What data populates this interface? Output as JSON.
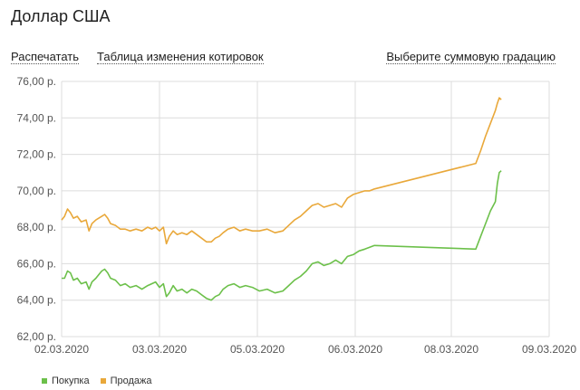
{
  "header": {
    "title": "Доллар США"
  },
  "toolbar": {
    "print_label": "Распечатать",
    "table_label": "Таблица изменения котировок",
    "gradation_label": "Выберите суммовую градацию"
  },
  "colors": {
    "buy": "#6cc04a",
    "sell": "#e9a83a",
    "grid": "#dcdcdc",
    "axis_text": "#555555"
  },
  "chart_data": {
    "type": "line",
    "title": "",
    "xlabel": "",
    "ylabel": "",
    "ylim": [
      62,
      76
    ],
    "y_ticks": [
      62,
      64,
      66,
      68,
      70,
      72,
      74,
      76
    ],
    "y_tick_labels": [
      "62,00 р.",
      "64,00 р.",
      "66,00 р.",
      "68,00 р.",
      "70,00 р.",
      "72,00 р.",
      "74,00 р.",
      "76,00 р."
    ],
    "x_categories": [
      "02.03.2020",
      "03.03.2020",
      "05.03.2020",
      "06.03.2020",
      "08.03.2020",
      "09.03.2020"
    ],
    "grid": true,
    "legend_position": "bottom-left",
    "series": [
      {
        "name": "Покупка",
        "color": "#6cc04a",
        "points": [
          [
            0.0,
            65.2
          ],
          [
            0.03,
            65.2
          ],
          [
            0.06,
            65.6
          ],
          [
            0.09,
            65.5
          ],
          [
            0.12,
            65.1
          ],
          [
            0.16,
            65.2
          ],
          [
            0.2,
            64.9
          ],
          [
            0.25,
            65.0
          ],
          [
            0.28,
            64.6
          ],
          [
            0.31,
            65.0
          ],
          [
            0.35,
            65.2
          ],
          [
            0.38,
            65.4
          ],
          [
            0.41,
            65.6
          ],
          [
            0.44,
            65.7
          ],
          [
            0.47,
            65.5
          ],
          [
            0.5,
            65.2
          ],
          [
            0.55,
            65.1
          ],
          [
            0.6,
            64.8
          ],
          [
            0.65,
            64.9
          ],
          [
            0.7,
            64.7
          ],
          [
            0.76,
            64.8
          ],
          [
            0.82,
            64.6
          ],
          [
            0.88,
            64.8
          ],
          [
            0.92,
            64.9
          ],
          [
            0.96,
            65.0
          ],
          [
            1.0,
            64.7
          ],
          [
            1.04,
            64.9
          ],
          [
            1.07,
            64.2
          ],
          [
            1.1,
            64.4
          ],
          [
            1.14,
            64.8
          ],
          [
            1.18,
            64.5
          ],
          [
            1.23,
            64.6
          ],
          [
            1.28,
            64.4
          ],
          [
            1.33,
            64.6
          ],
          [
            1.38,
            64.5
          ],
          [
            1.43,
            64.3
          ],
          [
            1.48,
            64.1
          ],
          [
            1.53,
            64.0
          ],
          [
            1.57,
            64.2
          ],
          [
            1.61,
            64.3
          ],
          [
            1.65,
            64.6
          ],
          [
            1.7,
            64.8
          ],
          [
            1.76,
            64.9
          ],
          [
            1.82,
            64.7
          ],
          [
            1.88,
            64.8
          ],
          [
            1.95,
            64.7
          ],
          [
            2.02,
            64.5
          ],
          [
            2.1,
            64.6
          ],
          [
            2.18,
            64.4
          ],
          [
            2.26,
            64.5
          ],
          [
            2.32,
            64.8
          ],
          [
            2.38,
            65.1
          ],
          [
            2.44,
            65.3
          ],
          [
            2.5,
            65.6
          ],
          [
            2.56,
            66.0
          ],
          [
            2.62,
            66.1
          ],
          [
            2.68,
            65.9
          ],
          [
            2.74,
            66.0
          ],
          [
            2.8,
            66.2
          ],
          [
            2.86,
            66.0
          ],
          [
            2.92,
            66.4
          ],
          [
            2.98,
            66.5
          ],
          [
            3.04,
            66.7
          ],
          [
            3.1,
            66.8
          ],
          [
            3.15,
            66.9
          ],
          [
            3.2,
            67.0
          ],
          [
            4.25,
            66.8
          ],
          [
            4.3,
            67.5
          ],
          [
            4.35,
            68.2
          ],
          [
            4.4,
            68.9
          ],
          [
            4.45,
            69.4
          ],
          [
            4.47,
            70.4
          ],
          [
            4.49,
            71.0
          ],
          [
            4.51,
            71.1
          ]
        ]
      },
      {
        "name": "Продажа",
        "color": "#e9a83a",
        "points": [
          [
            0.0,
            68.4
          ],
          [
            0.03,
            68.6
          ],
          [
            0.06,
            69.0
          ],
          [
            0.09,
            68.8
          ],
          [
            0.12,
            68.5
          ],
          [
            0.16,
            68.6
          ],
          [
            0.2,
            68.3
          ],
          [
            0.25,
            68.4
          ],
          [
            0.28,
            67.8
          ],
          [
            0.31,
            68.2
          ],
          [
            0.35,
            68.4
          ],
          [
            0.38,
            68.5
          ],
          [
            0.41,
            68.6
          ],
          [
            0.44,
            68.7
          ],
          [
            0.47,
            68.5
          ],
          [
            0.5,
            68.2
          ],
          [
            0.55,
            68.1
          ],
          [
            0.6,
            67.9
          ],
          [
            0.65,
            67.9
          ],
          [
            0.7,
            67.8
          ],
          [
            0.76,
            67.9
          ],
          [
            0.82,
            67.8
          ],
          [
            0.88,
            68.0
          ],
          [
            0.92,
            67.9
          ],
          [
            0.96,
            68.0
          ],
          [
            1.0,
            67.8
          ],
          [
            1.04,
            68.0
          ],
          [
            1.07,
            67.1
          ],
          [
            1.1,
            67.5
          ],
          [
            1.14,
            67.8
          ],
          [
            1.18,
            67.6
          ],
          [
            1.23,
            67.7
          ],
          [
            1.28,
            67.6
          ],
          [
            1.33,
            67.8
          ],
          [
            1.38,
            67.6
          ],
          [
            1.43,
            67.4
          ],
          [
            1.48,
            67.2
          ],
          [
            1.53,
            67.2
          ],
          [
            1.57,
            67.4
          ],
          [
            1.61,
            67.5
          ],
          [
            1.65,
            67.7
          ],
          [
            1.7,
            67.9
          ],
          [
            1.76,
            68.0
          ],
          [
            1.82,
            67.8
          ],
          [
            1.88,
            67.9
          ],
          [
            1.95,
            67.8
          ],
          [
            2.02,
            67.8
          ],
          [
            2.1,
            67.9
          ],
          [
            2.18,
            67.7
          ],
          [
            2.26,
            67.8
          ],
          [
            2.32,
            68.1
          ],
          [
            2.38,
            68.4
          ],
          [
            2.44,
            68.6
          ],
          [
            2.5,
            68.9
          ],
          [
            2.56,
            69.2
          ],
          [
            2.62,
            69.3
          ],
          [
            2.68,
            69.1
          ],
          [
            2.74,
            69.2
          ],
          [
            2.8,
            69.3
          ],
          [
            2.86,
            69.1
          ],
          [
            2.92,
            69.6
          ],
          [
            2.98,
            69.8
          ],
          [
            3.04,
            69.9
          ],
          [
            3.1,
            70.0
          ],
          [
            3.15,
            70.0
          ],
          [
            3.2,
            70.1
          ],
          [
            4.25,
            71.5
          ],
          [
            4.3,
            72.2
          ],
          [
            4.35,
            73.0
          ],
          [
            4.4,
            73.7
          ],
          [
            4.45,
            74.4
          ],
          [
            4.47,
            74.8
          ],
          [
            4.49,
            75.1
          ],
          [
            4.51,
            75.0
          ]
        ]
      }
    ]
  },
  "legend": {
    "buy_label": "Покупка",
    "sell_label": "Продажа"
  }
}
